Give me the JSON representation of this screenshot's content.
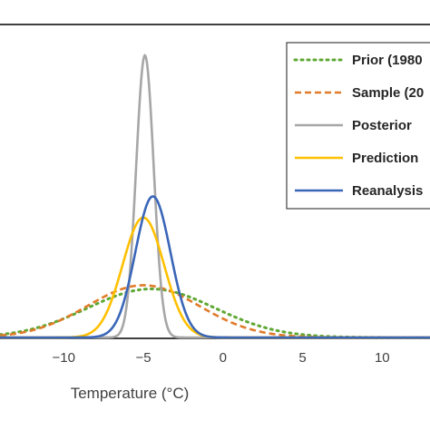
{
  "chart_data": {
    "type": "line",
    "xlabel": "Temperature (°C)",
    "ylabel": "",
    "xlim": [
      -14,
      13
    ],
    "xticks": [
      "−10",
      "−5",
      "0",
      "5",
      "10"
    ],
    "xtick_values": [
      -10,
      -5,
      0,
      5,
      10
    ],
    "grid": false,
    "legend_position": "top-right",
    "series": [
      {
        "name": "Prior (1980",
        "color": "#5FA834",
        "dash": "dotted",
        "dist": "normal",
        "mean": -4.5,
        "sd": 4.0,
        "peak": 0.172
      },
      {
        "name": "Sample (20",
        "color": "#E07B2A",
        "dash": "dashed",
        "dist": "normal",
        "mean": -5.0,
        "sd": 3.5,
        "peak": 0.185
      },
      {
        "name": "Posterior",
        "color": "#A6A6A6",
        "dash": "solid",
        "dist": "normal",
        "mean": -4.9,
        "sd": 0.55,
        "peak": 1.0
      },
      {
        "name": "Prediction",
        "color": "#FFC000",
        "dash": "solid",
        "dist": "normal",
        "mean": -5.0,
        "sd": 1.3,
        "peak": 0.425
      },
      {
        "name": "Reanalysis",
        "color": "#3A66B8",
        "dash": "solid",
        "dist": "normal",
        "mean": -4.4,
        "sd": 1.1,
        "peak": 0.5
      }
    ]
  }
}
